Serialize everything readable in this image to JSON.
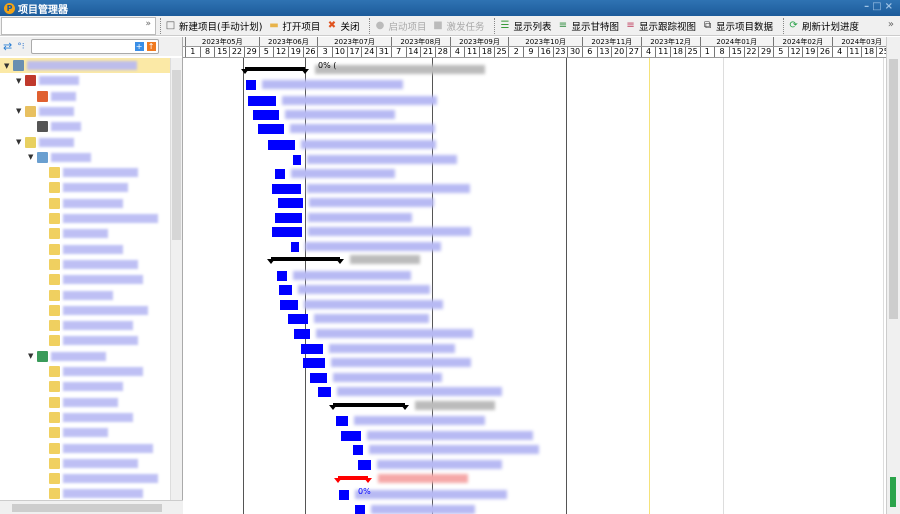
{
  "window": {
    "title": "项目管理器",
    "controls": "–□×"
  },
  "toolbar": {
    "combo_arrow": "»",
    "buttons": [
      {
        "label": "新建项目(手动计划)",
        "icon": "new-document-icon",
        "enabled": true
      },
      {
        "label": "打开项目",
        "icon": "folder-open-icon",
        "enabled": true
      },
      {
        "label": "关闭",
        "icon": "close-x-icon",
        "enabled": true
      },
      {
        "label": "启动项目",
        "icon": "start-icon",
        "enabled": false
      },
      {
        "label": "激发任务",
        "icon": "trigger-icon",
        "enabled": false
      },
      {
        "label": "显示列表",
        "icon": "list-icon",
        "enabled": true
      },
      {
        "label": "显示甘特图",
        "icon": "gantt-icon",
        "enabled": true
      },
      {
        "label": "显示跟踪视图",
        "icon": "tracking-icon",
        "enabled": true
      },
      {
        "label": "显示项目数据",
        "icon": "project-data-icon",
        "enabled": true
      },
      {
        "label": "刷新计划进度",
        "icon": "refresh-icon",
        "enabled": true
      }
    ],
    "more": "»"
  },
  "left": {
    "search_value": "",
    "search_placeholder": ""
  },
  "timeline": {
    "months": [
      {
        "label": "2023年05月",
        "weeks": [
          "1",
          "8",
          "15",
          "22",
          "29"
        ]
      },
      {
        "label": "2023年06月",
        "weeks": [
          "5",
          "12",
          "19",
          "26"
        ]
      },
      {
        "label": "2023年07月",
        "weeks": [
          "3",
          "10",
          "17",
          "24",
          "31"
        ]
      },
      {
        "label": "2023年08月",
        "weeks": [
          "7",
          "14",
          "21",
          "28"
        ]
      },
      {
        "label": "2023年09月",
        "weeks": [
          "4",
          "11",
          "18",
          "25"
        ]
      },
      {
        "label": "2023年10月",
        "weeks": [
          "2",
          "9",
          "16",
          "23",
          "30"
        ]
      },
      {
        "label": "2023年11月",
        "weeks": [
          "6",
          "13",
          "20",
          "27"
        ]
      },
      {
        "label": "2023年12月",
        "weeks": [
          "4",
          "11",
          "18",
          "25"
        ]
      },
      {
        "label": "2024年01月",
        "weeks": [
          "1",
          "8",
          "15",
          "22",
          "29"
        ]
      },
      {
        "label": "2024年02月",
        "weeks": [
          "5",
          "12",
          "19",
          "26"
        ]
      },
      {
        "label": "2024年03月",
        "weeks": [
          "4",
          "11",
          "18",
          "25"
        ]
      },
      {
        "label": "",
        "weeks": [
          "1"
        ]
      }
    ],
    "current_date_color": "#f5e27a"
  },
  "gantt": {
    "task_color": "#0000ff",
    "summary_color": "#000000",
    "critical_color": "#ff0000",
    "labels": {
      "first_summary": "0% (",
      "red_task": "0%"
    }
  }
}
